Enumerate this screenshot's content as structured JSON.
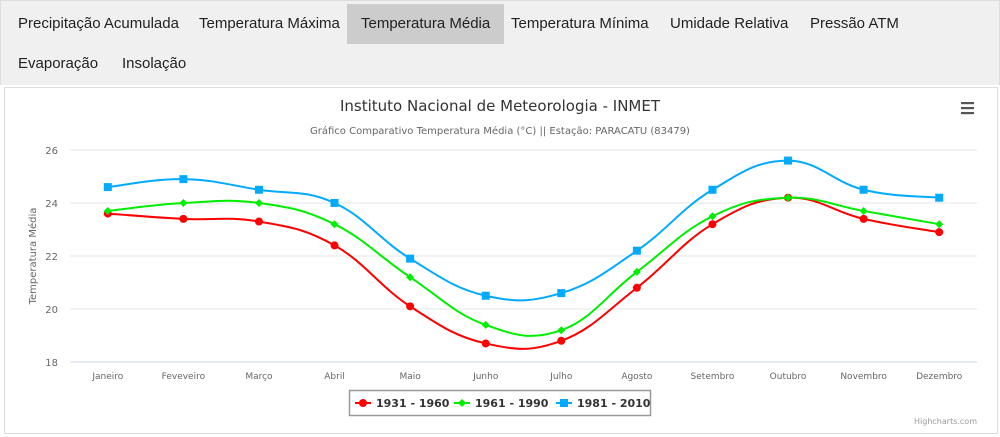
{
  "tabs": [
    {
      "label": "Precipitação Acumulada",
      "active": false
    },
    {
      "label": "Temperatura Máxima",
      "active": false
    },
    {
      "label": "Temperatura Média",
      "active": true
    },
    {
      "label": "Temperatura Mínima",
      "active": false
    },
    {
      "label": "Umidade Relativa",
      "active": false
    },
    {
      "label": "Pressão ATM",
      "active": false
    },
    {
      "label": "Evaporação",
      "active": false
    },
    {
      "label": "Insolação",
      "active": false
    }
  ],
  "credits": "Highcharts.com",
  "menu_icon": "hamburger-menu-icon",
  "chart_data": {
    "type": "line",
    "title": "Instituto Nacional de Meteorologia - INMET",
    "subtitle": "Gráfico Comparativo Temperatura Média (°C) || Estação: PARACATU (83479)",
    "xlabel": "",
    "ylabel": "Temperatura Média",
    "ylim": [
      18,
      26
    ],
    "yticks": [
      18,
      20,
      22,
      24,
      26
    ],
    "grid": true,
    "legend_position": "bottom-center",
    "categories": [
      "Janeiro",
      "Feveveiro",
      "Março",
      "Abril",
      "Maio",
      "Junho",
      "Julho",
      "Agosto",
      "Setembro",
      "Outubro",
      "Novembro",
      "Dezembro"
    ],
    "series": [
      {
        "name": "1931 - 1960",
        "color": "#ff0000",
        "marker": "circle",
        "values": [
          23.6,
          23.4,
          23.3,
          22.4,
          20.1,
          18.7,
          18.8,
          20.8,
          23.2,
          24.2,
          23.4,
          22.9
        ]
      },
      {
        "name": "1961 - 1990",
        "color": "#00ee00",
        "marker": "diamond",
        "values": [
          23.7,
          24.0,
          24.0,
          23.2,
          21.2,
          19.4,
          19.2,
          21.4,
          23.5,
          24.2,
          23.7,
          23.2
        ]
      },
      {
        "name": "1981 - 2010",
        "color": "#00aaff",
        "marker": "square",
        "values": [
          24.6,
          24.9,
          24.5,
          24.0,
          21.9,
          20.5,
          20.6,
          22.2,
          24.5,
          25.6,
          24.5,
          24.2
        ]
      }
    ]
  }
}
